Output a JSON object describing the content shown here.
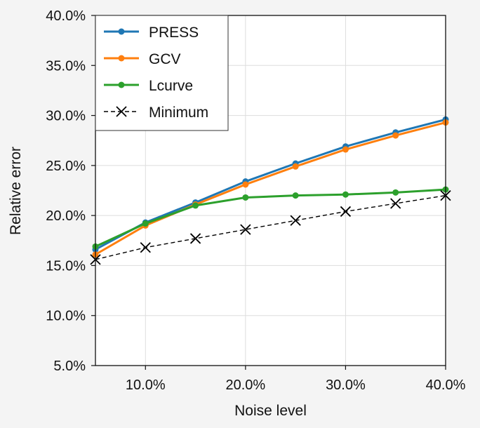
{
  "chart_data": {
    "type": "line",
    "title": "",
    "xlabel": "Noise level",
    "ylabel": "Relative error",
    "x": [
      0.05,
      0.1,
      0.15,
      0.2,
      0.25,
      0.3,
      0.35,
      0.4
    ],
    "xlim": [
      0.05,
      0.4
    ],
    "ylim": [
      0.05,
      0.4
    ],
    "x_ticks": [
      "10.0%",
      "20.0%",
      "30.0%",
      "40.0%"
    ],
    "x_tick_values": [
      0.1,
      0.2,
      0.3,
      0.4
    ],
    "y_ticks": [
      "5.0%",
      "10.0%",
      "15.0%",
      "20.0%",
      "25.0%",
      "30.0%",
      "35.0%",
      "40.0%"
    ],
    "y_tick_values": [
      0.05,
      0.1,
      0.15,
      0.2,
      0.25,
      0.3,
      0.35,
      0.4
    ],
    "grid": true,
    "legend_position": "top-left",
    "series": [
      {
        "name": "PRESS",
        "color": "#1f77b4",
        "marker": "circle",
        "linestyle": "solid",
        "values": [
          0.166,
          0.193,
          0.213,
          0.234,
          0.252,
          0.269,
          0.283,
          0.296
        ]
      },
      {
        "name": "GCV",
        "color": "#ff7f0e",
        "marker": "circle",
        "linestyle": "solid",
        "values": [
          0.161,
          0.19,
          0.211,
          0.231,
          0.249,
          0.266,
          0.28,
          0.293
        ]
      },
      {
        "name": "Lcurve",
        "color": "#2ca02c",
        "marker": "circle",
        "linestyle": "solid",
        "values": [
          0.169,
          0.192,
          0.21,
          0.218,
          0.22,
          0.221,
          0.223,
          0.226
        ]
      },
      {
        "name": "Minimum",
        "color": "#000000",
        "marker": "x",
        "linestyle": "dashed",
        "values": [
          0.156,
          0.168,
          0.177,
          0.186,
          0.195,
          0.204,
          0.212,
          0.22
        ]
      }
    ]
  }
}
